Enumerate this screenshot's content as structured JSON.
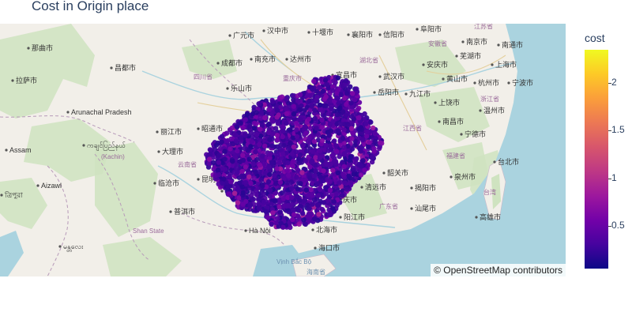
{
  "title": "Cost in Origin place",
  "colorbar": {
    "title": "cost",
    "ticks": [
      "2",
      "1.5",
      "1",
      "0.5"
    ],
    "tick_values": [
      2,
      1.5,
      1,
      0.5
    ],
    "min": 0.05,
    "max": 2.35,
    "colors": [
      "#0d0887",
      "#46039f",
      "#7201a8",
      "#9c179e",
      "#bd3786",
      "#d8576b",
      "#ed7953",
      "#fb9f3a",
      "#fdca26",
      "#f0f921"
    ]
  },
  "attribution": "© OpenStreetMap contributors",
  "map": {
    "places": [
      {
        "name": "广元市"
      },
      {
        "name": "汉中市"
      },
      {
        "name": "十堰市"
      },
      {
        "name": "襄阳市"
      },
      {
        "name": "信阳市"
      },
      {
        "name": "阜阳市"
      },
      {
        "name": "江苏省"
      },
      {
        "name": "那曲市"
      },
      {
        "name": "昌都市"
      },
      {
        "name": "成都市"
      },
      {
        "name": "南充市"
      },
      {
        "name": "达州市"
      },
      {
        "name": "湖北省"
      },
      {
        "name": "南京市"
      },
      {
        "name": "安徽省"
      },
      {
        "name": "南通市"
      },
      {
        "name": "芜湖市"
      },
      {
        "name": "上海市"
      },
      {
        "name": "安庆市"
      },
      {
        "name": "拉萨市"
      },
      {
        "name": "四川省"
      },
      {
        "name": "宜昌市"
      },
      {
        "name": "武汉市"
      },
      {
        "name": "黄山市"
      },
      {
        "name": "杭州市"
      },
      {
        "name": "宁波市"
      },
      {
        "name": "乐山市"
      },
      {
        "name": "重庆市"
      },
      {
        "name": "岳阳市"
      },
      {
        "name": "九江市"
      },
      {
        "name": "浙江省"
      },
      {
        "name": "上饶市"
      },
      {
        "name": "温州市"
      },
      {
        "name": "张家界"
      },
      {
        "name": "Arunachal Pradesh"
      },
      {
        "name": "丽江市"
      },
      {
        "name": "昭通市"
      },
      {
        "name": "南昌市"
      },
      {
        "name": "江西省"
      },
      {
        "name": "宁德市"
      },
      {
        "name": "Assam"
      },
      {
        "name": "大理市"
      },
      {
        "name": "福建省"
      },
      {
        "name": "台北市"
      },
      {
        "name": "ကချင်ပြည်နယ်"
      },
      {
        "name": "(Kachin)"
      },
      {
        "name": "云南省"
      },
      {
        "name": "韶关市"
      },
      {
        "name": "泉州市"
      },
      {
        "name": "台湾"
      },
      {
        "name": "Aizawl"
      },
      {
        "name": "ত্রিপুরা"
      },
      {
        "name": "昆明市"
      },
      {
        "name": "临沧市"
      },
      {
        "name": "文山市"
      },
      {
        "name": "清远市"
      },
      {
        "name": "揭阳市"
      },
      {
        "name": "肇庆市"
      },
      {
        "name": "汕尾市"
      },
      {
        "name": "高雄市"
      },
      {
        "name": "普洱市"
      },
      {
        "name": "阳江市"
      },
      {
        "name": "广东省"
      },
      {
        "name": "Shan State"
      },
      {
        "name": "Hà Nội"
      },
      {
        "name": "北海市"
      },
      {
        "name": "海口市"
      },
      {
        "name": "Vịnh Bắc Bộ"
      },
      {
        "name": "海南省"
      },
      {
        "name": "မန္တလေး"
      }
    ]
  }
}
